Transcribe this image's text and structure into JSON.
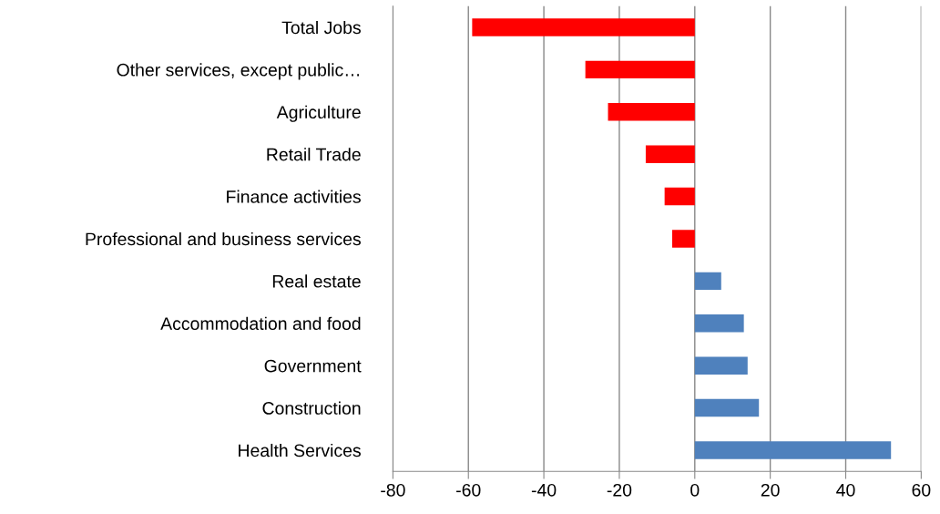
{
  "chart_data": {
    "type": "bar",
    "orientation": "horizontal",
    "categories": [
      "Total Jobs",
      "Other services, except public…",
      "Agriculture",
      "Retail Trade",
      "Finance activities",
      "Professional and business services",
      "Real estate",
      "Accommodation and food",
      "Government",
      "Construction",
      "Health Services"
    ],
    "values": [
      -59,
      -29,
      -23,
      -13,
      -8,
      -6,
      7,
      13,
      14,
      17,
      52
    ],
    "colors": [
      "#ff0000",
      "#ff0000",
      "#ff0000",
      "#ff0000",
      "#ff0000",
      "#ff0000",
      "#4f81bd",
      "#4f81bd",
      "#4f81bd",
      "#4f81bd",
      "#4f81bd"
    ],
    "xlim": [
      -80,
      60
    ],
    "xticks": [
      -80,
      -60,
      -40,
      -20,
      0,
      20,
      40,
      60
    ],
    "grid": "x"
  }
}
